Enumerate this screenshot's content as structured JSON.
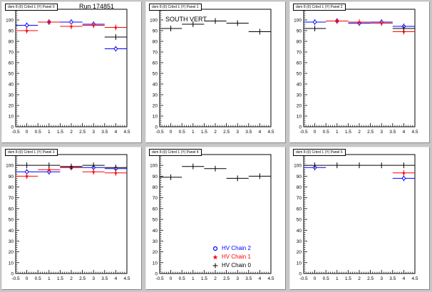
{
  "colors": {
    "chain2": "#0000ff",
    "chain1": "#ff0000",
    "chain0": "#000000"
  },
  "annotations": {
    "run_label": "Run 174851",
    "south_label": "SOUTH VERT"
  },
  "legend": [
    {
      "label": "HV Chain 2",
      "marker": "circle",
      "color": "#0000ff"
    },
    {
      "label": "HV Chain 1",
      "marker": "star",
      "color": "#ff0000"
    },
    {
      "label": "HV Chain 0",
      "marker": "plus",
      "color": "#000000"
    }
  ],
  "chart_data": [
    {
      "type": "scatter",
      "title": "dsm 8 (0) Crbrd 1 (Y) Panel 0",
      "xlim": [
        -0.5,
        4.5
      ],
      "ylim": [
        0,
        110
      ],
      "xticks": [
        "-0.5",
        "0",
        "0.5",
        "1",
        "1.5",
        "2",
        "2.5",
        "3",
        "3.5",
        "4",
        "4.5"
      ],
      "yticks": [
        "0",
        "10",
        "20",
        "30",
        "40",
        "50",
        "60",
        "70",
        "80",
        "90",
        "100"
      ],
      "series": [
        {
          "name": "HV Chain 2",
          "points": [
            [
              0,
              95
            ],
            [
              1,
              98
            ],
            [
              2,
              98
            ],
            [
              3,
              96
            ],
            [
              4,
              73
            ]
          ]
        },
        {
          "name": "HV Chain 1",
          "points": [
            [
              0,
              90
            ],
            [
              1,
              98
            ],
            [
              2,
              94
            ],
            [
              3,
              95
            ],
            [
              4,
              93
            ]
          ]
        },
        {
          "name": "HV Chain 0",
          "points": [
            [
              4,
              84
            ]
          ]
        }
      ]
    },
    {
      "type": "scatter",
      "title": "dsm 8 (0) Crbrd 1 (Y) Panel 1",
      "xlim": [
        -0.5,
        4.5
      ],
      "ylim": [
        0,
        110
      ],
      "xticks": [
        "-0.5",
        "0",
        "0.5",
        "1",
        "1.5",
        "2",
        "2.5",
        "3",
        "3.5",
        "4",
        "4.5"
      ],
      "yticks": [
        "0",
        "10",
        "20",
        "30",
        "40",
        "50",
        "60",
        "70",
        "80",
        "90",
        "100"
      ],
      "series": [
        {
          "name": "HV Chain 2",
          "points": []
        },
        {
          "name": "HV Chain 1",
          "points": []
        },
        {
          "name": "HV Chain 0",
          "points": [
            [
              0,
              92
            ],
            [
              1,
              96
            ],
            [
              2,
              99
            ],
            [
              3,
              97
            ],
            [
              4,
              89
            ]
          ]
        }
      ]
    },
    {
      "type": "scatter",
      "title": "dsm 8 (0) Crbrd 1 (Y) Panel 2",
      "xlim": [
        -0.5,
        4.5
      ],
      "ylim": [
        0,
        110
      ],
      "xticks": [
        "-0.5",
        "0",
        "0.5",
        "1",
        "1.5",
        "2",
        "2.5",
        "3",
        "3.5",
        "4",
        "4.5"
      ],
      "yticks": [
        "0",
        "10",
        "20",
        "30",
        "40",
        "50",
        "60",
        "70",
        "80",
        "90",
        "100"
      ],
      "series": [
        {
          "name": "HV Chain 2",
          "points": [
            [
              0,
              98
            ],
            [
              1,
              99
            ],
            [
              2,
              97
            ],
            [
              3,
              98
            ],
            [
              4,
              94
            ]
          ]
        },
        {
          "name": "HV Chain 1",
          "points": [
            [
              1,
              99
            ],
            [
              2,
              98
            ],
            [
              3,
              97
            ],
            [
              4,
              89
            ]
          ]
        },
        {
          "name": "HV Chain 0",
          "points": [
            [
              0,
              92
            ],
            [
              4,
              92
            ]
          ]
        }
      ]
    },
    {
      "type": "scatter",
      "title": "dsm 8 (0) Crbrd 1 (Y) Panel 3",
      "xlim": [
        -0.5,
        4.5
      ],
      "ylim": [
        0,
        110
      ],
      "xticks": [
        "-0.5",
        "0",
        "0.5",
        "1",
        "1.5",
        "2",
        "2.5",
        "3",
        "3.5",
        "4",
        "4.5"
      ],
      "yticks": [
        "0",
        "10",
        "20",
        "30",
        "40",
        "50",
        "60",
        "70",
        "80",
        "90",
        "100"
      ],
      "series": [
        {
          "name": "HV Chain 2",
          "points": [
            [
              0,
              94
            ],
            [
              1,
              94
            ],
            [
              2,
              98
            ],
            [
              3,
              98
            ],
            [
              4,
              97
            ]
          ]
        },
        {
          "name": "HV Chain 1",
          "points": [
            [
              0,
              90
            ],
            [
              1,
              96
            ],
            [
              2,
              98
            ],
            [
              3,
              94
            ],
            [
              4,
              93
            ]
          ]
        },
        {
          "name": "HV Chain 0",
          "points": [
            [
              0,
              100
            ],
            [
              1,
              100
            ],
            [
              2,
              99
            ],
            [
              3,
              100
            ],
            [
              4,
              98
            ]
          ]
        }
      ]
    },
    {
      "type": "scatter",
      "title": "dsm 8 (0) Crbrd 1 (Y) Panel 4",
      "xlim": [
        -0.5,
        4.5
      ],
      "ylim": [
        0,
        110
      ],
      "xticks": [
        "-0.5",
        "0",
        "0.5",
        "1",
        "1.5",
        "2",
        "2.5",
        "3",
        "3.5",
        "4",
        "4.5"
      ],
      "yticks": [
        "0",
        "10",
        "20",
        "30",
        "40",
        "50",
        "60",
        "70",
        "80",
        "90",
        "100"
      ],
      "series": [
        {
          "name": "HV Chain 2",
          "points": []
        },
        {
          "name": "HV Chain 1",
          "points": []
        },
        {
          "name": "HV Chain 0",
          "points": [
            [
              0,
              89
            ],
            [
              1,
              99
            ],
            [
              2,
              97
            ],
            [
              3,
              88
            ],
            [
              4,
              90
            ]
          ]
        }
      ]
    },
    {
      "type": "scatter",
      "title": "dsm 8 (0) Crbrd 1 (Y) Panel 5",
      "xlim": [
        -0.5,
        4.5
      ],
      "ylim": [
        0,
        110
      ],
      "xticks": [
        "-0.5",
        "0",
        "0.5",
        "1",
        "1.5",
        "2",
        "2.5",
        "3",
        "3.5",
        "4",
        "4.5"
      ],
      "yticks": [
        "0",
        "10",
        "20",
        "30",
        "40",
        "50",
        "60",
        "70",
        "80",
        "90",
        "100"
      ],
      "series": [
        {
          "name": "HV Chain 2",
          "points": [
            [
              0,
              98
            ],
            [
              4,
              88
            ]
          ]
        },
        {
          "name": "HV Chain 1",
          "points": [
            [
              4,
              93
            ]
          ]
        },
        {
          "name": "HV Chain 0",
          "points": [
            [
              0,
              100
            ],
            [
              1,
              100
            ],
            [
              2,
              100
            ],
            [
              3,
              100
            ],
            [
              4,
              100
            ]
          ]
        }
      ]
    }
  ]
}
